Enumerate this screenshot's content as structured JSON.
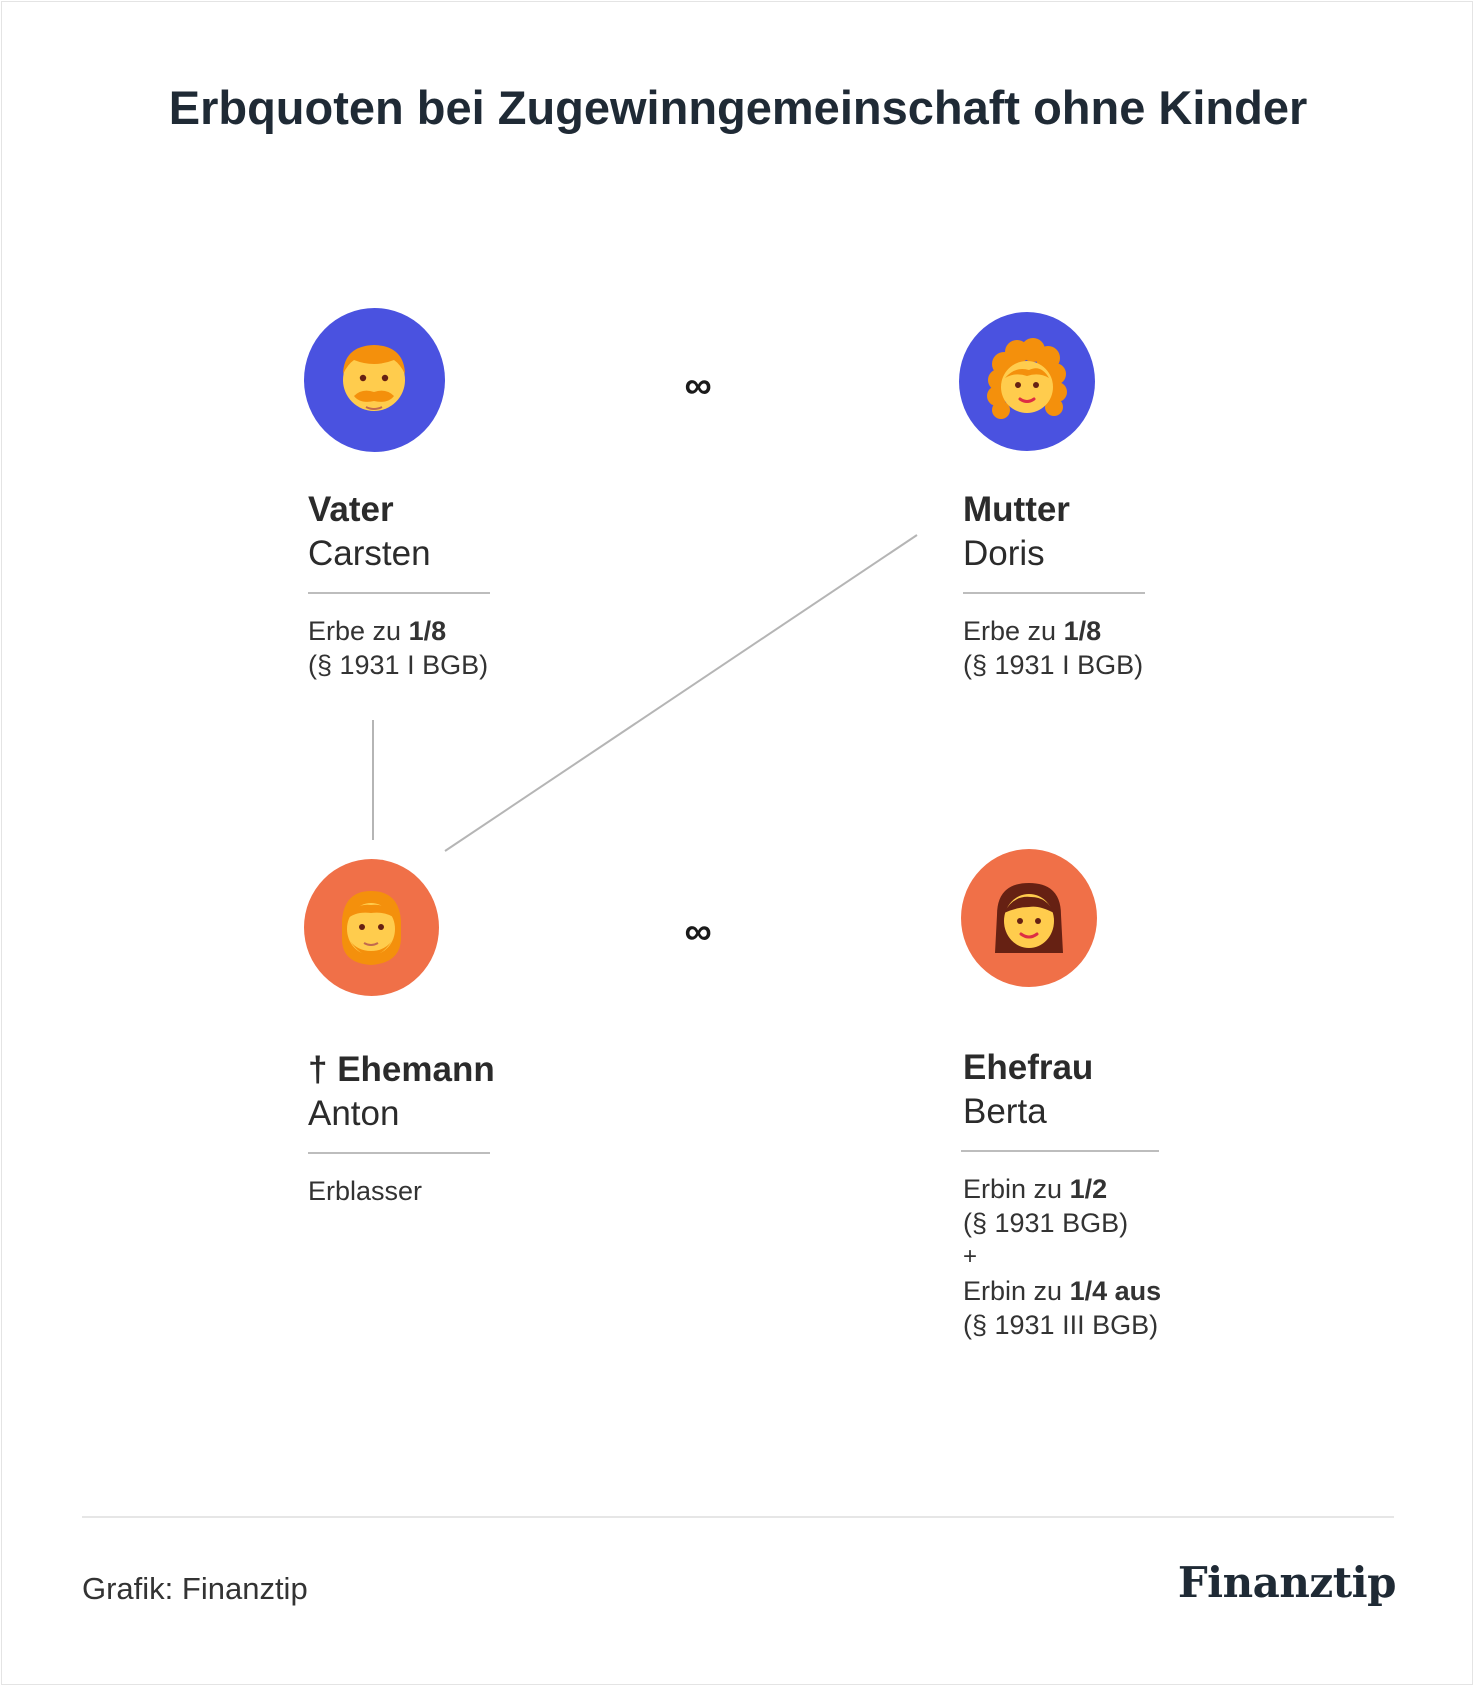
{
  "title": "Erbquoten bei Zugewinngemeinschaft ohne Kinder",
  "marriage_symbol": "∞",
  "colors": {
    "parent_circle": "#4a52e0",
    "spouse_circle": "#f07048",
    "connector": "#b5b5b5"
  },
  "persons": {
    "father": {
      "role": "Vater",
      "name": "Carsten",
      "share_prefix": "Erbe zu ",
      "share": "1/8",
      "law": "(§ 1931 I BGB)",
      "icon": "bearded-man-icon"
    },
    "mother": {
      "role": "Mutter",
      "name": "Doris",
      "share_prefix": "Erbe zu ",
      "share": "1/8",
      "law": "(§ 1931 I BGB)",
      "icon": "curly-haired-woman-icon"
    },
    "husband": {
      "role": "† Ehemann",
      "name": "Anton",
      "status": "Erblasser",
      "icon": "bearded-man-icon"
    },
    "wife": {
      "role": "Ehefrau",
      "name": "Berta",
      "share_prefix": "Erbin zu ",
      "share": "1/2",
      "law": "(§ 1931 BGB)",
      "plus": "+",
      "share2_prefix": "Erbin zu ",
      "share2": "1/4 aus",
      "law2": "(§ 1931 III BGB)",
      "icon": "woman-icon"
    }
  },
  "footer": {
    "credit": "Grafik: Finanztip",
    "logo": "Finanztip"
  }
}
